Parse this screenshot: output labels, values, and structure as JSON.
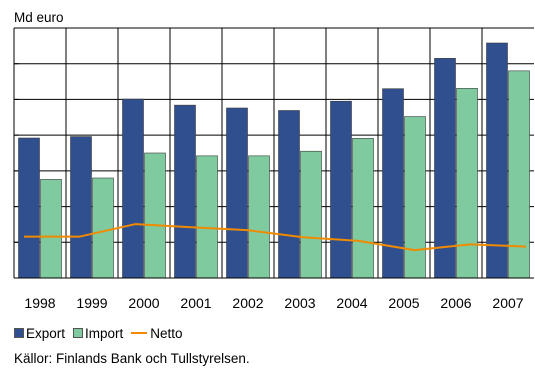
{
  "chart_data": {
    "type": "bar",
    "ylabel": "Md euro",
    "ylim": [
      0,
      70
    ],
    "ytick_step": 10,
    "grid": true,
    "legend_position": "bottom-left",
    "categories": [
      "1998",
      "1999",
      "2000",
      "2001",
      "2002",
      "2003",
      "2004",
      "2005",
      "2006",
      "2007"
    ],
    "series": [
      {
        "name": "Export",
        "type": "bar",
        "color": "#2f4f8f",
        "values": [
          39.2,
          39.6,
          50.1,
          48.4,
          47.6,
          46.9,
          49.5,
          53,
          61.5,
          65.8
        ]
      },
      {
        "name": "Import",
        "type": "bar",
        "color": "#7fcb9f",
        "values": [
          27.6,
          28,
          35,
          34.2,
          34.2,
          35.5,
          39.1,
          45.2,
          53.1,
          58
        ]
      },
      {
        "name": "Netto",
        "type": "line",
        "color": "#f08a00",
        "values": [
          11.6,
          11.6,
          15.1,
          14.2,
          13.4,
          11.4,
          10.4,
          7.8,
          9.4,
          8.8
        ]
      }
    ],
    "source": "Källor: Finlands Bank och Tullstyrelsen."
  }
}
